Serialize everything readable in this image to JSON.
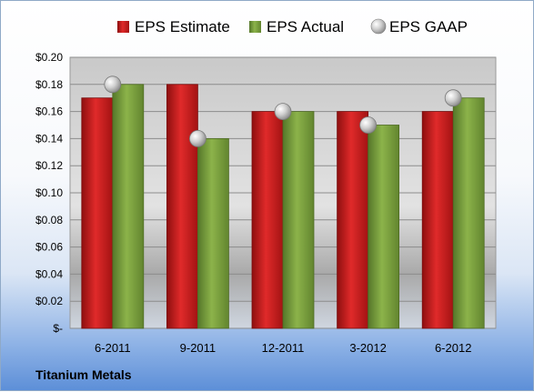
{
  "company": "Titanium Metals",
  "chart_data": {
    "type": "bar",
    "categories": [
      "6-2011",
      "9-2011",
      "12-2011",
      "3-2012",
      "6-2012"
    ],
    "series": [
      {
        "name": "EPS Estimate",
        "kind": "bar",
        "color": "#cc1f1f",
        "values": [
          0.17,
          0.18,
          0.16,
          0.16,
          0.16
        ]
      },
      {
        "name": "EPS Actual",
        "kind": "bar",
        "color": "#7aa23c",
        "values": [
          0.18,
          0.14,
          0.16,
          0.15,
          0.17
        ]
      },
      {
        "name": "EPS GAAP",
        "kind": "marker",
        "color": "#c8c8c8",
        "values": [
          0.18,
          0.14,
          0.16,
          0.15,
          0.17
        ]
      }
    ],
    "ylim": [
      0,
      0.2
    ],
    "yticks": [
      0,
      0.02,
      0.04,
      0.06,
      0.08,
      0.1,
      0.12,
      0.14,
      0.16,
      0.18,
      0.2
    ],
    "ytick_labels": [
      "$-",
      "$0.02",
      "$0.04",
      "$0.06",
      "$0.08",
      "$0.10",
      "$0.12",
      "$0.14",
      "$0.16",
      "$0.18",
      "$0.20"
    ],
    "grid": true,
    "legend_position": "top"
  }
}
